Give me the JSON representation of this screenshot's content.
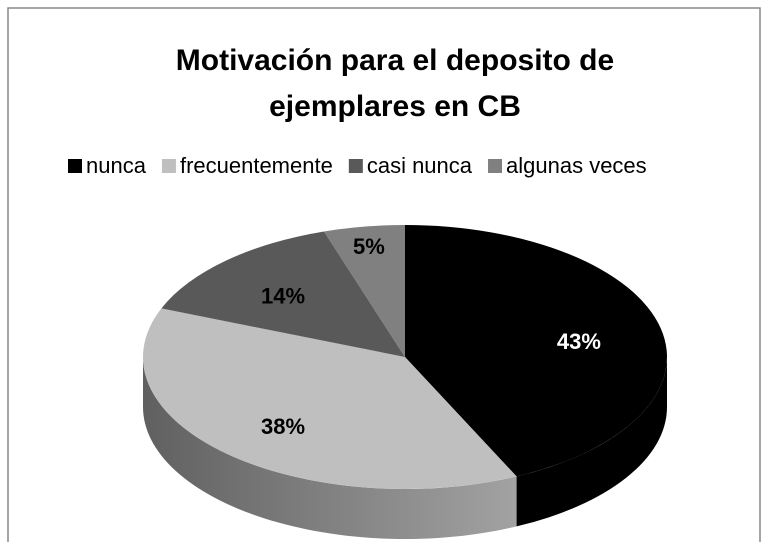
{
  "chart_data": {
    "type": "pie",
    "title": "Motivación para el deposito de ejemplares en CB",
    "categories": [
      "nunca",
      "frecuentemente",
      "casi nunca",
      "algunas veces"
    ],
    "values": [
      43,
      38,
      14,
      5
    ],
    "value_labels": [
      "43%",
      "38%",
      "14%",
      "5%"
    ],
    "colors": [
      "#000000",
      "#bfbfbf",
      "#595959",
      "#808080"
    ],
    "legend": "top"
  }
}
